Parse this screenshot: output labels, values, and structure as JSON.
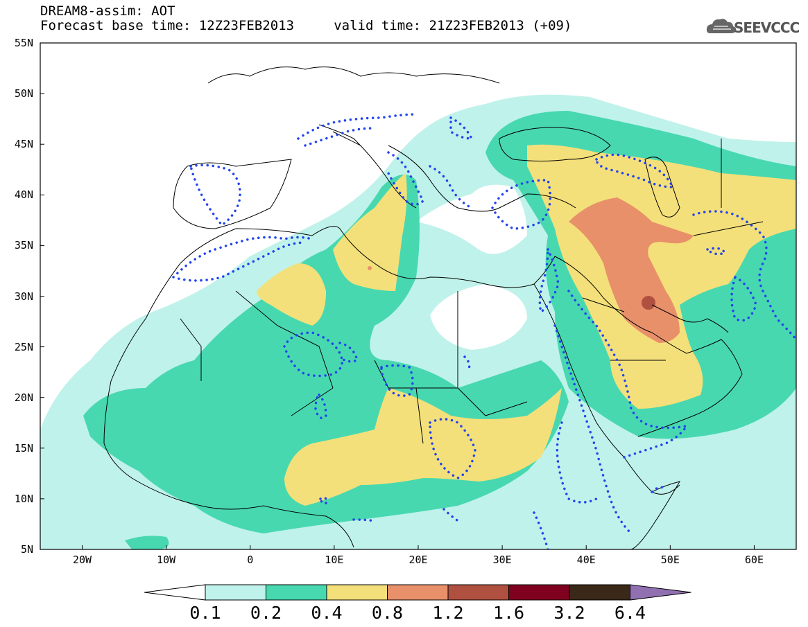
{
  "title": {
    "line1": "DREAM8-assim: AOT",
    "line2": "Forecast base time: 12Z23FEB2013     valid time: 21Z23FEB2013 (+09)"
  },
  "logo": {
    "text": "SEEVCCC",
    "icon": "cloud-icon"
  },
  "axes": {
    "lat_labels": [
      "55N",
      "50N",
      "45N",
      "40N",
      "35N",
      "30N",
      "25N",
      "20N",
      "15N",
      "10N",
      "5N"
    ],
    "lon_labels": [
      "20W",
      "10W",
      "0",
      "10E",
      "20E",
      "30E",
      "40E",
      "50E",
      "60E"
    ],
    "lat_range": [
      5,
      55
    ],
    "lon_range": [
      -25,
      65
    ]
  },
  "colorbar": {
    "labels": [
      "0.1",
      "0.2",
      "0.4",
      "0.8",
      "1.2",
      "1.6",
      "3.2",
      "6.4"
    ],
    "colors": [
      "#bff2ea",
      "#48d8b0",
      "#f4e07a",
      "#e8906a",
      "#b05040",
      "#800020",
      "#3a2818",
      "#9070b0"
    ]
  },
  "field_colors": {
    "light": "#bff2ea",
    "green": "#48d8b0",
    "yellow": "#f4e07a",
    "orange": "#e8906a",
    "dark": "#b05040",
    "dotted_contour": "#2244ee"
  }
}
